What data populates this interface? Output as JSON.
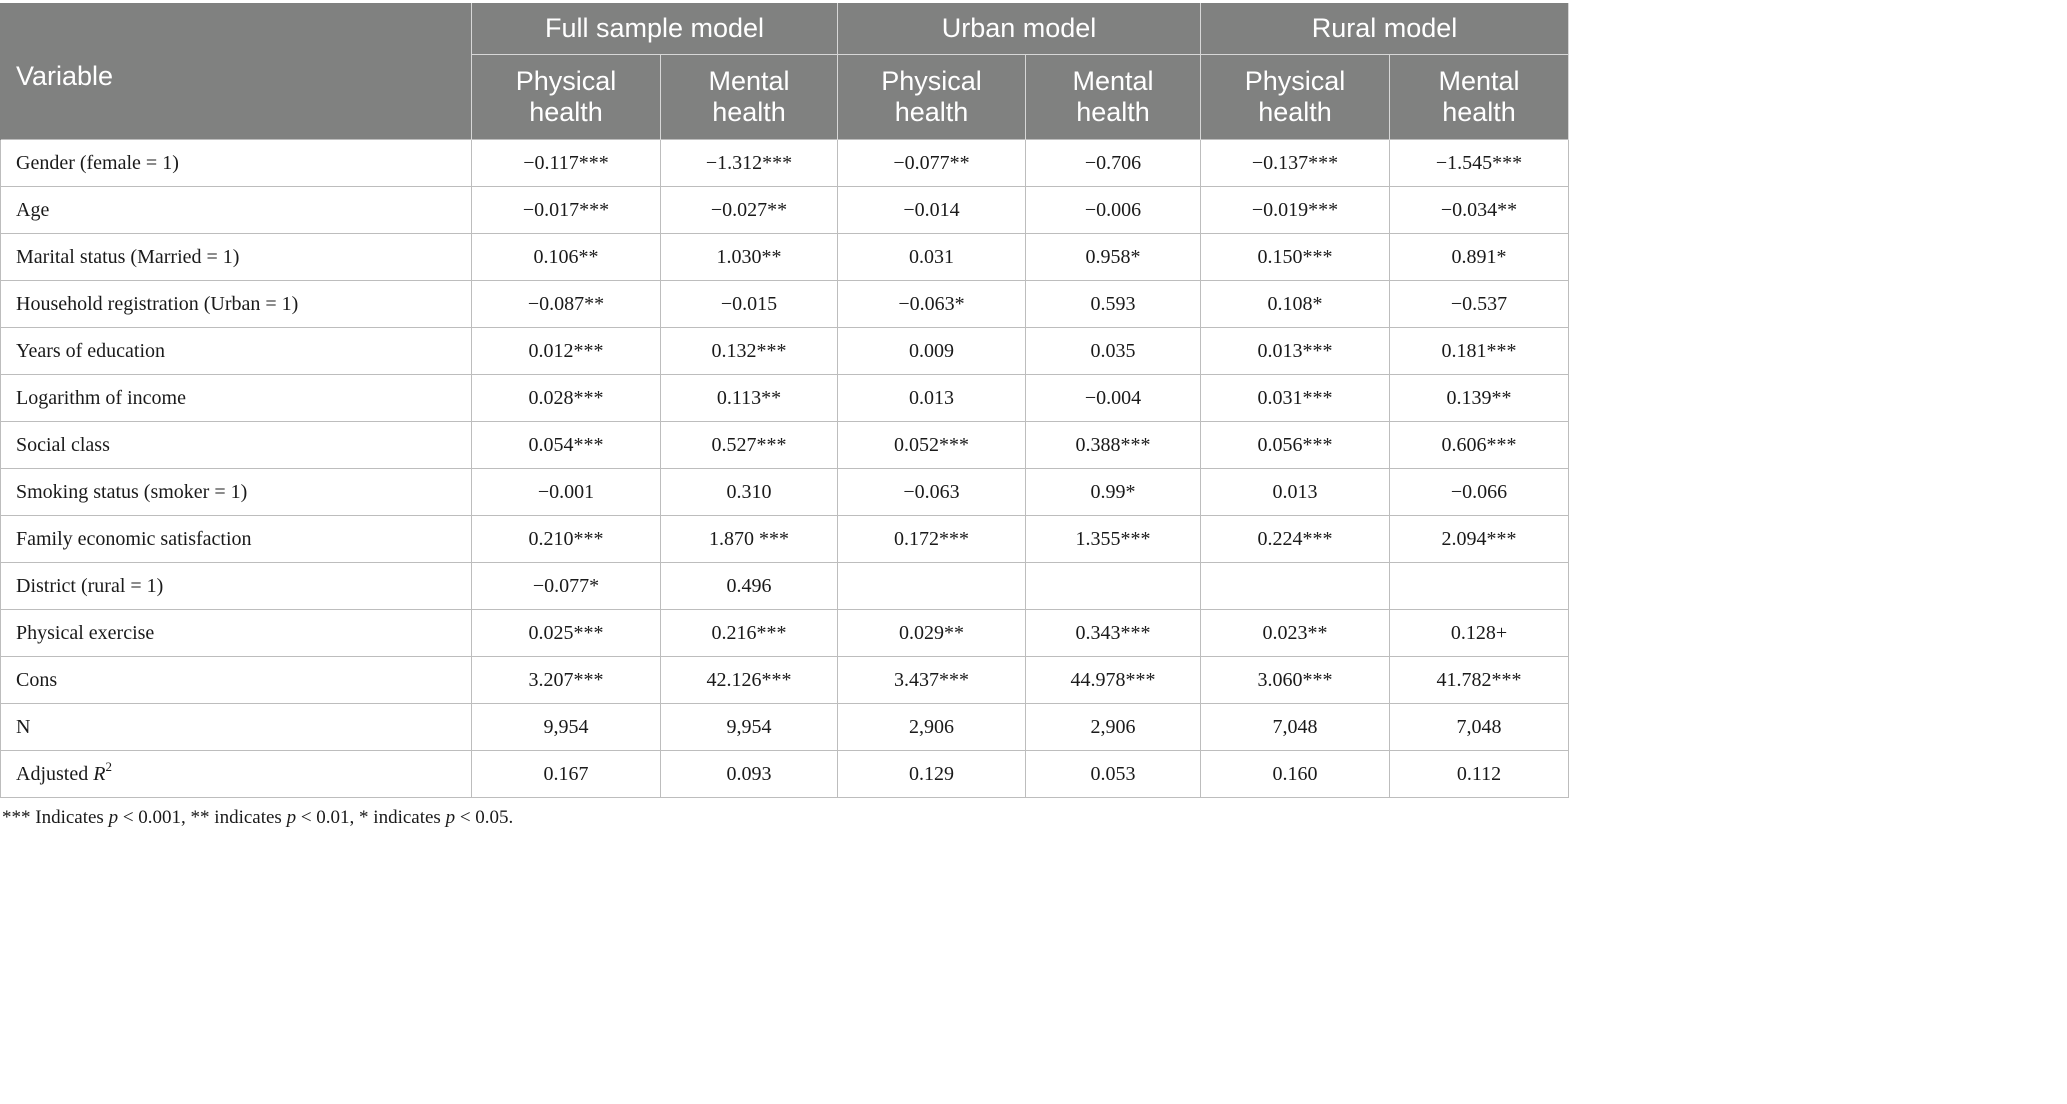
{
  "table": {
    "variable_header": "Variable",
    "groups": [
      "Full sample model",
      "Urban model",
      "Rural model"
    ],
    "subheaders": [
      "Physical\nhealth",
      "Mental\nhealth",
      "Physical\nhealth",
      "Mental\nhealth",
      "Physical\nhealth",
      "Mental\nhealth"
    ],
    "rows": [
      {
        "variable": "Gender (female = 1)",
        "values": [
          "−0.117***",
          "−1.312***",
          "−0.077**",
          "−0.706",
          "−0.137***",
          "−1.545***"
        ]
      },
      {
        "variable": "Age",
        "values": [
          "−0.017***",
          "−0.027**",
          "−0.014",
          "−0.006",
          "−0.019***",
          "−0.034**"
        ]
      },
      {
        "variable": "Marital status (Married = 1)",
        "values": [
          "0.106**",
          "1.030**",
          "0.031",
          "0.958*",
          "0.150***",
          "0.891*"
        ]
      },
      {
        "variable": "Household registration (Urban = 1)",
        "values": [
          "−0.087**",
          "−0.015",
          "−0.063*",
          "0.593",
          "0.108*",
          "−0.537"
        ]
      },
      {
        "variable": "Years of education",
        "values": [
          "0.012***",
          "0.132***",
          "0.009",
          "0.035",
          "0.013***",
          "0.181***"
        ]
      },
      {
        "variable": "Logarithm of income",
        "values": [
          "0.028***",
          "0.113**",
          "0.013",
          "−0.004",
          "0.031***",
          "0.139**"
        ]
      },
      {
        "variable": "Social class",
        "values": [
          "0.054***",
          "0.527***",
          "0.052***",
          "0.388***",
          "0.056***",
          "0.606***"
        ]
      },
      {
        "variable": "Smoking status (smoker = 1)",
        "values": [
          "−0.001",
          "0.310",
          "−0.063",
          "0.99*",
          "0.013",
          "−0.066"
        ]
      },
      {
        "variable": "Family economic satisfaction",
        "values": [
          "0.210***",
          "1.870 ***",
          "0.172***",
          "1.355***",
          "0.224***",
          "2.094***"
        ]
      },
      {
        "variable": "District (rural = 1)",
        "values": [
          "−0.077*",
          "0.496",
          "",
          "",
          "",
          ""
        ]
      },
      {
        "variable": "Physical exercise",
        "values": [
          "0.025***",
          "0.216***",
          "0.029**",
          "0.343***",
          "0.023**",
          "0.128+"
        ]
      },
      {
        "variable": "Cons",
        "values": [
          "3.207***",
          "42.126***",
          "3.437***",
          "44.978***",
          "3.060***",
          "41.782***"
        ]
      },
      {
        "variable": "N",
        "values": [
          "9,954",
          "9,954",
          "2,906",
          "2,906",
          "7,048",
          "7,048"
        ]
      },
      {
        "variable": "Adjusted R²",
        "values": [
          "0.167",
          "0.093",
          "0.129",
          "0.053",
          "0.160",
          "0.112"
        ]
      }
    ]
  },
  "footnote": "*** Indicates p < 0.001, ** indicates p < 0.01, * indicates p < 0.05."
}
